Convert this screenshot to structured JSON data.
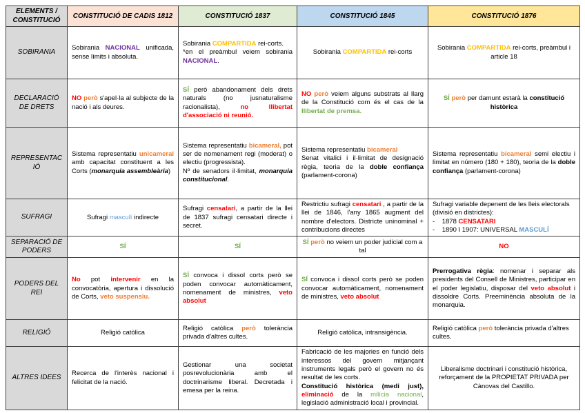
{
  "colors": {
    "red": "#ff0000",
    "orange": "#ed7d31",
    "gold": "#ffc000",
    "green": "#70ad47",
    "purple": "#7030a0",
    "blue": "#5b9bd5",
    "label_gray": "#d9d9d9",
    "border": "#3f3f3f"
  },
  "header": {
    "corner": "ELEMENTS /\nCONSTITUCIÓ",
    "columns": [
      {
        "key": "cadis-1812",
        "label": "CONSTITUCIÓ DE CADIS 1812",
        "bg": "#fbe2d5"
      },
      {
        "key": "1837",
        "label": "CONSTITUCIÓ 1837",
        "bg": "#dfebd2"
      },
      {
        "key": "1845",
        "label": "CONSTITUCIÓ 1845",
        "bg": "#bdd7ee"
      },
      {
        "key": "1876",
        "label": "CONSTITUCIÓ 1876",
        "bg": "#ffe699"
      }
    ]
  },
  "rows": [
    {
      "key": "sobirania",
      "label": "SOBIRANIA",
      "cells": [
        {
          "align": "justify",
          "runs": [
            {
              "t": "Sobirania "
            },
            {
              "t": "NACIONAL",
              "c": "purple",
              "b": 1
            },
            {
              "t": " unificada, sense límits i absoluta."
            }
          ]
        },
        {
          "align": "justify",
          "runs": [
            {
              "t": "Sobirania "
            },
            {
              "t": "COMPARTIDA",
              "c": "gold",
              "b": 1
            },
            {
              "t": " rei-corts.\n*en el preàmbul veiem sobirania "
            },
            {
              "t": "NACIONAL",
              "c": "purple",
              "b": 1
            },
            {
              "t": "."
            }
          ]
        },
        {
          "align": "center",
          "runs": [
            {
              "t": "Sobirania "
            },
            {
              "t": "COMPARTIDA",
              "c": "gold",
              "b": 1
            },
            {
              "t": " rei-corts"
            }
          ]
        },
        {
          "align": "center",
          "runs": [
            {
              "t": "Sobirania "
            },
            {
              "t": "COMPARTIDA",
              "c": "gold",
              "b": 1
            },
            {
              "t": " rei-corts, preàmbul i article 18"
            }
          ]
        }
      ]
    },
    {
      "key": "declaracio-de-drets",
      "label": "DECLARACIÓ DE DRETS",
      "cells": [
        {
          "align": "justify",
          "runs": [
            {
              "t": "NO",
              "c": "red",
              "b": 1
            },
            {
              "t": " "
            },
            {
              "t": "però",
              "c": "orange",
              "b": 1
            },
            {
              "t": " s'apel·la al subjecte de la nació i als deures."
            }
          ]
        },
        {
          "align": "justify",
          "runs": [
            {
              "t": "SÍ",
              "c": "green",
              "b": 1
            },
            {
              "t": " però abandonament dels drets naturals (no jusnaturalisme racionalista), "
            },
            {
              "t": "no llibertat d'associació ni reunió.",
              "c": "red",
              "b": 1
            }
          ]
        },
        {
          "align": "justify",
          "runs": [
            {
              "t": "NO",
              "c": "red",
              "b": 1
            },
            {
              "t": " "
            },
            {
              "t": "però",
              "c": "orange",
              "b": 1
            },
            {
              "t": " veiem alguns substrats al llarg de la Constitució com és el cas de la "
            },
            {
              "t": "llibertat de premsa.",
              "c": "green",
              "b": 1
            }
          ]
        },
        {
          "align": "center",
          "runs": [
            {
              "t": "SÍ",
              "c": "green",
              "b": 1
            },
            {
              "t": " "
            },
            {
              "t": "però",
              "c": "orange",
              "b": 1
            },
            {
              "t": " per damunt estarà la "
            },
            {
              "t": "constitució històrica",
              "b": 1
            }
          ]
        }
      ]
    },
    {
      "key": "representacio",
      "label": "REPRESENTACIÓ",
      "cells": [
        {
          "align": "justify",
          "runs": [
            {
              "t": "Sistema representatiu "
            },
            {
              "t": "unicameral",
              "c": "orange",
              "b": 1
            },
            {
              "t": " amb capacitat constituent a les Corts ("
            },
            {
              "t": "monarquia assembleària",
              "b": 1,
              "i": 1
            },
            {
              "t": ")"
            }
          ]
        },
        {
          "align": "justify",
          "runs": [
            {
              "t": "Sistema representatiu "
            },
            {
              "t": "bicameral,",
              "c": "orange",
              "b": 1
            },
            {
              "t": " pot ser de nomenament regi (moderat) o electiu (progressista).\nNº de senadors il·limitat, "
            },
            {
              "t": "monarquia constitucional",
              "b": 1,
              "i": 1
            },
            {
              "t": "."
            }
          ]
        },
        {
          "align": "justify",
          "runs": [
            {
              "t": "Sistema representatiu "
            },
            {
              "t": "bicameral",
              "c": "orange",
              "b": 1
            },
            {
              "t": "\nSenat vitalici i il·limitat de designació règia, teoria de la "
            },
            {
              "t": "doble confiança",
              "b": 1
            },
            {
              "t": " (parlament-corona)"
            }
          ]
        },
        {
          "align": "justify",
          "runs": [
            {
              "t": "Sistema representatiu "
            },
            {
              "t": "bicameral",
              "c": "orange",
              "b": 1
            },
            {
              "t": " semi electiu i limitat en número (180 + 180), teoria de la "
            },
            {
              "t": "doble confiança",
              "b": 1
            },
            {
              "t": " (parlament-corona)"
            }
          ]
        }
      ]
    },
    {
      "key": "sufragi",
      "label": "SUFRAGI",
      "cells": [
        {
          "align": "center",
          "runs": [
            {
              "t": "Sufragi "
            },
            {
              "t": "masculí",
              "c": "blue"
            },
            {
              "t": " indirecte"
            }
          ]
        },
        {
          "align": "justify",
          "runs": [
            {
              "t": "Sufragi "
            },
            {
              "t": "censatari",
              "c": "red",
              "b": 1
            },
            {
              "t": ", a partir de la llei de 1837 sufragi censatari directe i secret."
            }
          ]
        },
        {
          "align": "justify",
          "runs": [
            {
              "t": "Restrictiu sufragi "
            },
            {
              "t": "censatari",
              "c": "red",
              "b": 1
            },
            {
              "t": " , a partir de la llei de 1846, l'any 1865 augment del nombre d'electors. Districte uninominal + contribucions directes"
            }
          ]
        },
        {
          "align": "left",
          "runs": [
            {
              "t": "Sufragi variable depenent de les lleis electorals (divisió en districtes):\n-    1878 "
            },
            {
              "t": "CENSATARI",
              "c": "red",
              "b": 1
            },
            {
              "t": "\n-    1890 I 1907: UNIVERSAL "
            },
            {
              "t": "MASCULÍ",
              "c": "blue",
              "b": 1
            }
          ]
        }
      ]
    },
    {
      "key": "separacio-de-poders",
      "label": "SEPARACIÓ DE PODERS",
      "cells": [
        {
          "align": "center",
          "runs": [
            {
              "t": "SÍ",
              "c": "green",
              "b": 1
            }
          ]
        },
        {
          "align": "center",
          "runs": [
            {
              "t": "SÍ",
              "c": "green",
              "b": 1
            }
          ]
        },
        {
          "align": "center",
          "runs": [
            {
              "t": "SÍ",
              "c": "green",
              "b": 1
            },
            {
              "t": " "
            },
            {
              "t": "però",
              "c": "orange",
              "b": 1
            },
            {
              "t": " no veiem un poder judicial com a tal"
            }
          ]
        },
        {
          "align": "center",
          "runs": [
            {
              "t": "NO",
              "c": "red",
              "b": 1
            }
          ]
        }
      ]
    },
    {
      "key": "poders-del-rei",
      "label": "PODERS DEL REI",
      "cells": [
        {
          "align": "justify",
          "runs": [
            {
              "t": "No",
              "c": "red",
              "b": 1
            },
            {
              "t": " pot "
            },
            {
              "t": "intervenir",
              "c": "red",
              "b": 1
            },
            {
              "t": " en la convocatòria, apertura i dissolució de Corts, "
            },
            {
              "t": "veto suspensiu.",
              "c": "orange",
              "b": 1
            }
          ]
        },
        {
          "align": "justify",
          "runs": [
            {
              "t": "SÍ",
              "c": "green",
              "b": 1
            },
            {
              "t": " convoca i dissol corts però se poden convocar automàticament, nomenament de ministres, "
            },
            {
              "t": "veto absolut",
              "c": "red",
              "b": 1
            }
          ]
        },
        {
          "align": "justify",
          "runs": [
            {
              "t": "SÍ",
              "c": "green",
              "b": 1
            },
            {
              "t": " convoca i dissol corts però se poden convocar automàticament, nomenament de ministres, "
            },
            {
              "t": "veto absolut",
              "c": "red",
              "b": 1
            }
          ]
        },
        {
          "align": "justify",
          "runs": [
            {
              "t": "Prerrogativa règia",
              "b": 1
            },
            {
              "t": ": nomenar i separar als presidents del Consell de Ministres, participar en el poder legislatiu, disposar del "
            },
            {
              "t": "veto absolut",
              "c": "red",
              "b": 1
            },
            {
              "t": " i dissoldre Corts. Preeminència absoluta de la monarquia."
            }
          ]
        }
      ]
    },
    {
      "key": "religio",
      "label": "RELIGIÓ",
      "cells": [
        {
          "align": "center",
          "runs": [
            {
              "t": "Religió catòlica"
            }
          ]
        },
        {
          "align": "justify",
          "runs": [
            {
              "t": "Religió catòlica "
            },
            {
              "t": "però",
              "c": "orange",
              "b": 1
            },
            {
              "t": " tolerància privada d'altres cultes."
            }
          ]
        },
        {
          "align": "center",
          "runs": [
            {
              "t": "Religió catòlica, intransigència."
            }
          ]
        },
        {
          "align": "left",
          "runs": [
            {
              "t": "Religió catòlica "
            },
            {
              "t": "però",
              "c": "orange",
              "b": 1
            },
            {
              "t": " tolerància privada d'altres cultes."
            }
          ]
        }
      ]
    },
    {
      "key": "altres-idees",
      "label": "ALTRES IDEES",
      "cells": [
        {
          "align": "justify",
          "runs": [
            {
              "t": "Recerca de l'interès nacional i felicitat de la nació."
            }
          ]
        },
        {
          "align": "justify",
          "runs": [
            {
              "t": "Gestionar una societat posrevolucionària amb el doctrinarisme liberal. Decretada i emesa per la reina."
            }
          ]
        },
        {
          "align": "justify",
          "runs": [
            {
              "t": "Fabricació de les majories en funció dels interessos del govern mitjançant instruments legals però el govern no és resultat de les corts.\n"
            },
            {
              "t": "Constitució històrica (medi just),",
              "b": 1
            },
            {
              "t": " "
            },
            {
              "t": "eliminació",
              "c": "red",
              "b": 1
            },
            {
              "t": " de la "
            },
            {
              "t": "milícia nacional",
              "c": "green"
            },
            {
              "t": ", legislació administració local i provincial."
            }
          ]
        },
        {
          "align": "center",
          "runs": [
            {
              "t": "Liberalisme doctrinari i constitució històrica, reforçament de la PROPIETAT PRIVADA per Cànovas del Castillo."
            }
          ]
        }
      ]
    }
  ]
}
